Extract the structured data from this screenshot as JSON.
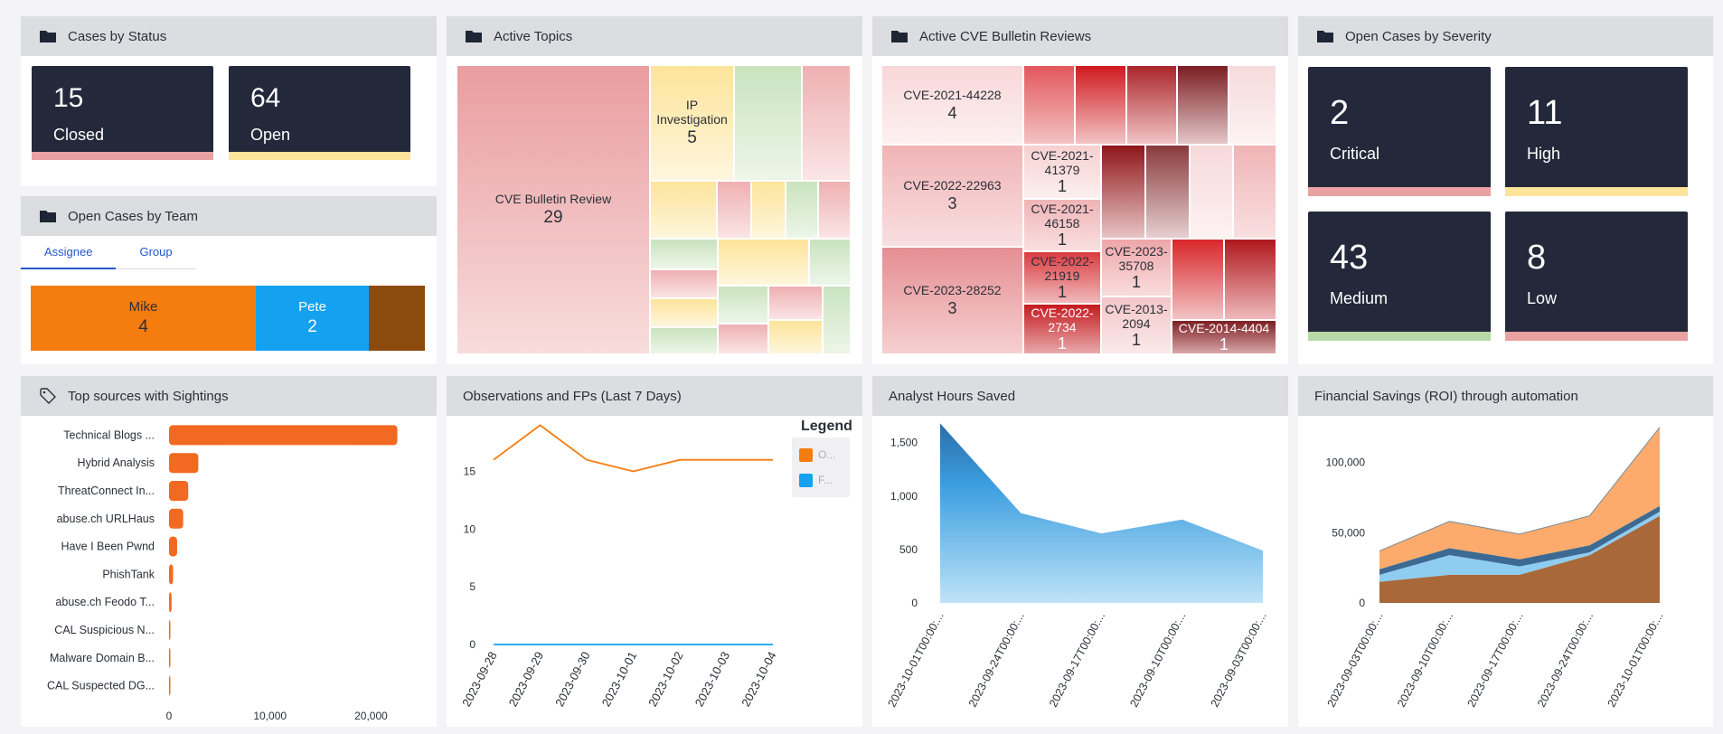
{
  "cases_by_status": {
    "title": "Cases by Status",
    "cards": [
      {
        "value": "15",
        "label": "Closed",
        "color": "#e9a1a1"
      },
      {
        "value": "64",
        "label": "Open",
        "color": "#fde49a"
      }
    ]
  },
  "open_cases_by_team": {
    "title": "Open Cases by Team",
    "tabs": [
      "Assignee",
      "Group"
    ],
    "segments": [
      {
        "name": "Mike",
        "value": "4",
        "color": "#f57c0f"
      },
      {
        "name": "Pete",
        "value": "2",
        "color": "#13a1f0"
      },
      {
        "name": "",
        "value": "",
        "color": "#8b4a0e"
      }
    ]
  },
  "active_topics": {
    "title": "Active Topics",
    "big": {
      "name": "CVE Bulletin Review",
      "value": "29"
    },
    "second": {
      "name": "IP Investigation",
      "value": "5"
    }
  },
  "active_cve": {
    "title": "Active CVE Bulletin Reviews",
    "items": [
      {
        "name": "CVE-2021-44228",
        "value": "4"
      },
      {
        "name": "CVE-2022-22963",
        "value": "3"
      },
      {
        "name": "CVE-2023-28252",
        "value": "3"
      },
      {
        "name": "CVE-2021-41379",
        "value": "1"
      },
      {
        "name": "CVE-2021-46158",
        "value": "1"
      },
      {
        "name": "CVE-2022-21919",
        "value": "1"
      },
      {
        "name": "CVE-2022-2734",
        "value": "1"
      },
      {
        "name": "CVE-2023-35708",
        "value": "1"
      },
      {
        "name": "CVE-2013-2094",
        "value": "1"
      },
      {
        "name": "CVE-2014-4404",
        "value": "1"
      }
    ]
  },
  "open_cases_by_severity": {
    "title": "Open Cases by Severity",
    "cards": [
      {
        "value": "2",
        "label": "Critical",
        "color": "#e9a1a1"
      },
      {
        "value": "11",
        "label": "High",
        "color": "#fde49a"
      },
      {
        "value": "43",
        "label": "Medium",
        "color": "#b6d9a6"
      },
      {
        "value": "8",
        "label": "Low",
        "color": "#e9a1a1"
      }
    ]
  },
  "top_sources": {
    "title": "Top sources with Sightings"
  },
  "observations": {
    "title": "Observations and FPs (Last 7 Days)",
    "legend_title": "Legend",
    "legend_items": [
      "O...",
      "F..."
    ]
  },
  "analyst_hours": {
    "title": "Analyst Hours Saved"
  },
  "financial": {
    "title": "Financial Savings (ROI) through automation"
  },
  "chart_data": [
    {
      "type": "bar",
      "title": "Top sources with Sightings",
      "orientation": "horizontal",
      "categories": [
        "Technical Blogs ...",
        "Hybrid Analysis",
        "ThreatConnect In...",
        "abuse.ch URLHaus",
        "Have I Been Pwnd",
        "PhishTank",
        "abuse.ch Feodo T...",
        "CAL Suspicious N...",
        "Malware Domain B...",
        "CAL Suspected DG..."
      ],
      "values": [
        22600,
        2900,
        1900,
        1400,
        800,
        400,
        250,
        120,
        80,
        50
      ],
      "xticks": [
        0,
        10000,
        20000
      ],
      "xtick_labels": [
        "0",
        "10,000",
        "20,000"
      ],
      "xlim": [
        0,
        23000
      ],
      "color": "#f26a22"
    },
    {
      "type": "line",
      "title": "Observations and FPs (Last 7 Days)",
      "x": [
        "2023-09-28",
        "2023-09-29",
        "2023-09-30",
        "2023-10-01",
        "2023-10-02",
        "2023-10-03",
        "2023-10-04"
      ],
      "series": [
        {
          "name": "O...",
          "values": [
            16,
            19,
            16,
            15,
            16,
            16,
            16
          ],
          "color": "#f57c0f"
        },
        {
          "name": "F...",
          "values": [
            0,
            0,
            0,
            0,
            0,
            0,
            0
          ],
          "color": "#13a1f0"
        }
      ],
      "yticks": [
        0,
        5,
        10,
        15
      ],
      "ylim": [
        0,
        19.5
      ]
    },
    {
      "type": "area",
      "title": "Analyst Hours Saved",
      "x": [
        "2023-10-01T00:00:...",
        "2023-09-24T00:00:...",
        "2023-09-17T00:00:...",
        "2023-09-10T00:00:...",
        "2023-09-03T00:00:..."
      ],
      "series": [
        {
          "name": "",
          "values": [
            1680,
            840,
            650,
            780,
            490
          ],
          "color": "#3da7e2"
        }
      ],
      "yticks": [
        0,
        500,
        1000,
        1500
      ],
      "ytick_labels": [
        "0",
        "500",
        "1,000",
        "1,500"
      ],
      "ylim": [
        0,
        1700
      ]
    },
    {
      "type": "area",
      "title": "Financial Savings (ROI) through automation",
      "stacked": true,
      "x": [
        "2023-09-03T00:00:...",
        "2023-09-10T00:00:...",
        "2023-09-17T00:00:...",
        "2023-09-24T00:00:...",
        "2023-10-01T00:00:..."
      ],
      "series": [
        {
          "name": "",
          "values": [
            15000,
            20000,
            20000,
            34000,
            62000
          ],
          "color": "#a8683a"
        },
        {
          "name": "",
          "values": [
            5000,
            14000,
            6000,
            2000,
            3000
          ],
          "color": "#8ecdf0"
        },
        {
          "name": "",
          "values": [
            4000,
            5000,
            5000,
            5000,
            4000
          ],
          "color": "#3d6a92"
        },
        {
          "name": "",
          "values": [
            13000,
            19000,
            18000,
            21000,
            56000
          ],
          "color": "#fcab6c"
        }
      ],
      "yticks": [
        0,
        50000,
        100000
      ],
      "ytick_labels": [
        "0",
        "50,000",
        "100,000"
      ],
      "ylim": [
        0,
        128000
      ]
    }
  ]
}
